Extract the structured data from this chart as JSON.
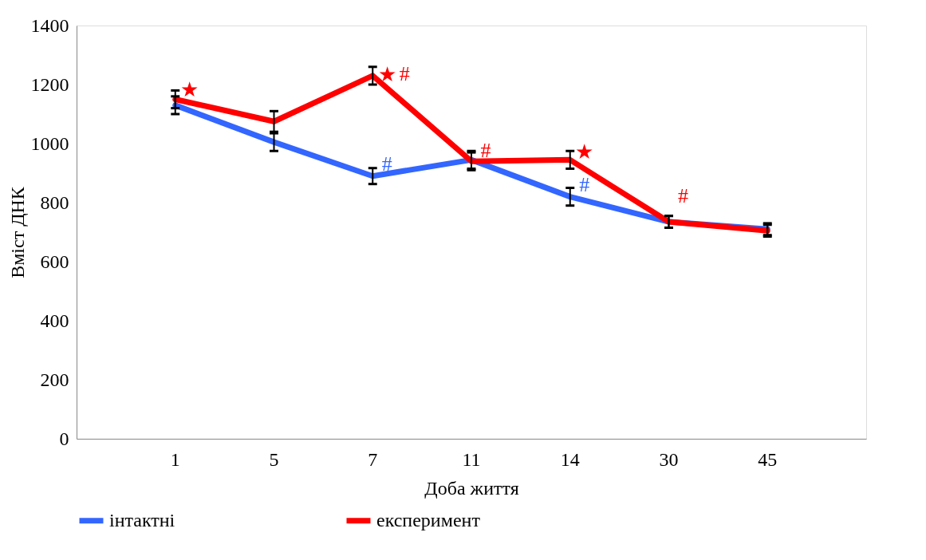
{
  "chart_data": {
    "type": "line",
    "xlabel": "Доба життя",
    "ylabel": "Вміст ДНК",
    "categories": [
      "1",
      "5",
      "7",
      "11",
      "14",
      "30",
      "45"
    ],
    "series": [
      {
        "name": "інтактні",
        "color": "#3366ff",
        "values": [
          1130,
          1005,
          890,
          945,
          820,
          735,
          710
        ],
        "errors": [
          30,
          30,
          27,
          30,
          30,
          20,
          20
        ]
      },
      {
        "name": "експеримент",
        "color": "#ff0000",
        "values": [
          1150,
          1075,
          1230,
          940,
          945,
          735,
          705
        ],
        "errors": [
          30,
          35,
          30,
          30,
          30,
          20,
          20
        ]
      }
    ],
    "ylim": [
      0,
      1400
    ],
    "yticks": [
      0,
      200,
      400,
      600,
      800,
      {
        "value": 1000,
        "label": "1000"
      },
      {
        "value": 1200,
        "label": "1200"
      },
      {
        "value": 1400,
        "label": "1400"
      }
    ],
    "grid": false,
    "legend": "bottom",
    "marker": "none",
    "line_style": "solid",
    "annotations": [
      {
        "text": "★",
        "x": "1",
        "y": 1180
      },
      {
        "text": "★",
        "x": "7",
        "y": 1232
      },
      {
        "text": "#",
        "x": "7",
        "y": 1235
      },
      {
        "text": "#",
        "x": "7",
        "y": 930
      },
      {
        "text": "#",
        "x": "11",
        "y": 975
      },
      {
        "text": "★",
        "x": "14",
        "y": 970
      },
      {
        "text": "#",
        "x": "14",
        "y": 860
      },
      {
        "text": "#",
        "x": "30",
        "y": 735
      }
    ]
  }
}
